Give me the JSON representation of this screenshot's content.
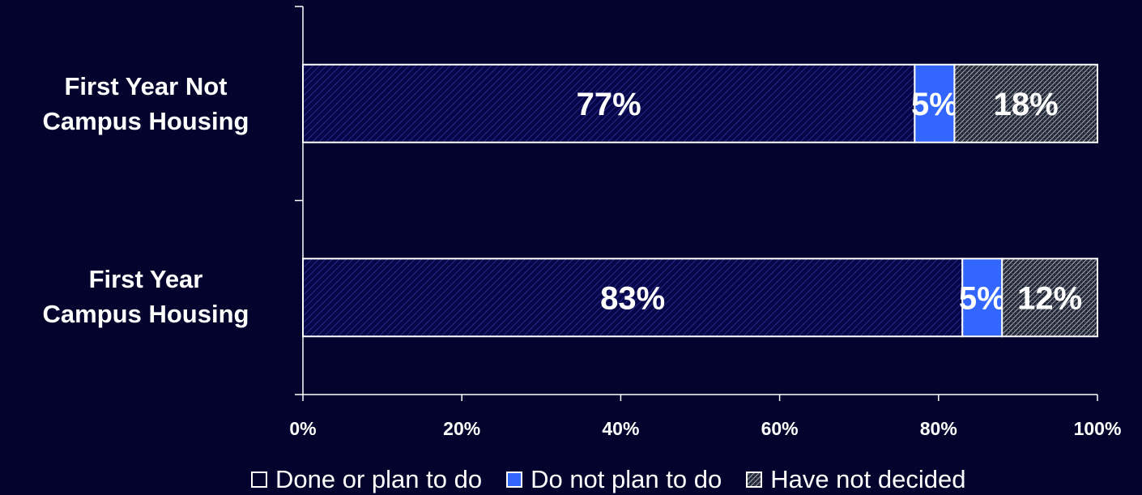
{
  "chart_data": {
    "type": "bar",
    "orientation": "horizontal",
    "stacked": true,
    "categories": [
      "First Year Not Campus Housing",
      "First Year Campus Housing"
    ],
    "series": [
      {
        "name": "Done or plan to do",
        "values": [
          77,
          83
        ],
        "labels": [
          "77%",
          "83%"
        ],
        "color": "#06064a",
        "pattern": "diagonal-hatch"
      },
      {
        "name": "Do not plan to do",
        "values": [
          5,
          5
        ],
        "labels": [
          "5%",
          "5%"
        ],
        "color": "#3366ff",
        "pattern": "solid"
      },
      {
        "name": "Have not decided",
        "values": [
          18,
          12
        ],
        "labels": [
          "18%",
          "12%"
        ],
        "color": "#2a2f3a",
        "pattern": "crosshatch"
      }
    ],
    "xlim": [
      0,
      100
    ],
    "xticks": [
      "0%",
      "20%",
      "40%",
      "60%",
      "80%",
      "100%"
    ],
    "title": "",
    "xlabel": "",
    "ylabel": "",
    "grid": false,
    "legend_position": "bottom"
  },
  "labels": {
    "cat0_line1": "First Year Not",
    "cat0_line2": "Campus Housing",
    "cat1_line1": "First Year",
    "cat1_line2": "Campus Housing"
  },
  "legend": {
    "item0": "Done or plan to do",
    "item1": "Do not plan to do",
    "item2": "Have not decided"
  }
}
